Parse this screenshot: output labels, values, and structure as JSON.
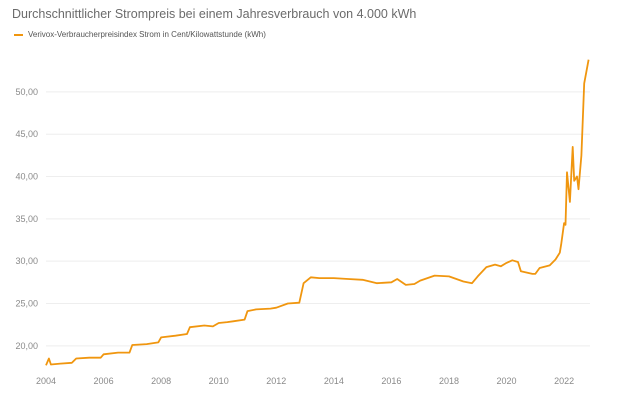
{
  "chart_data": {
    "type": "line",
    "title": "Durchschnittlicher Strompreis bei einem Jahresverbrauch von 4.000 kWh",
    "xlabel": "",
    "ylabel": "",
    "xlim": [
      2004.0,
      2022.9
    ],
    "ylim": [
      17.5,
      54.0
    ],
    "x_ticks": [
      2004,
      2006,
      2008,
      2010,
      2012,
      2014,
      2016,
      2018,
      2020,
      2022
    ],
    "y_ticks": [
      20,
      25,
      30,
      35,
      40,
      45,
      50
    ],
    "y_tick_labels": [
      "20,00",
      "25,00",
      "30,00",
      "35,00",
      "40,00",
      "45,00",
      "50,00"
    ],
    "grid": "horizontal",
    "legend_position": "top-left",
    "series": [
      {
        "name": "Verivox-Verbraucherpreisindex Strom in Cent/Kilowattstunde (kWh)",
        "color": "#f0960f",
        "points": [
          [
            2004.0,
            17.7
          ],
          [
            2004.1,
            18.5
          ],
          [
            2004.17,
            17.8
          ],
          [
            2004.5,
            17.9
          ],
          [
            2004.9,
            18.0
          ],
          [
            2005.05,
            18.5
          ],
          [
            2005.5,
            18.6
          ],
          [
            2005.9,
            18.6
          ],
          [
            2006.0,
            19.0
          ],
          [
            2006.5,
            19.2
          ],
          [
            2006.9,
            19.2
          ],
          [
            2007.0,
            20.1
          ],
          [
            2007.5,
            20.2
          ],
          [
            2007.9,
            20.4
          ],
          [
            2008.0,
            21.0
          ],
          [
            2008.5,
            21.2
          ],
          [
            2008.9,
            21.4
          ],
          [
            2009.0,
            22.2
          ],
          [
            2009.5,
            22.4
          ],
          [
            2009.8,
            22.3
          ],
          [
            2010.0,
            22.7
          ],
          [
            2010.3,
            22.8
          ],
          [
            2010.5,
            22.9
          ],
          [
            2010.9,
            23.1
          ],
          [
            2011.0,
            24.1
          ],
          [
            2011.3,
            24.3
          ],
          [
            2011.8,
            24.4
          ],
          [
            2012.0,
            24.5
          ],
          [
            2012.4,
            25.0
          ],
          [
            2012.8,
            25.1
          ],
          [
            2012.95,
            27.4
          ],
          [
            2013.2,
            28.1
          ],
          [
            2013.5,
            28.0
          ],
          [
            2014.0,
            28.0
          ],
          [
            2014.5,
            27.9
          ],
          [
            2015.0,
            27.8
          ],
          [
            2015.5,
            27.4
          ],
          [
            2016.0,
            27.5
          ],
          [
            2016.2,
            27.9
          ],
          [
            2016.5,
            27.2
          ],
          [
            2016.8,
            27.3
          ],
          [
            2017.0,
            27.7
          ],
          [
            2017.5,
            28.3
          ],
          [
            2018.0,
            28.2
          ],
          [
            2018.5,
            27.6
          ],
          [
            2018.8,
            27.4
          ],
          [
            2019.0,
            28.2
          ],
          [
            2019.3,
            29.3
          ],
          [
            2019.6,
            29.6
          ],
          [
            2019.8,
            29.4
          ],
          [
            2020.0,
            29.8
          ],
          [
            2020.2,
            30.1
          ],
          [
            2020.4,
            29.9
          ],
          [
            2020.5,
            28.8
          ],
          [
            2020.9,
            28.5
          ],
          [
            2021.0,
            28.5
          ],
          [
            2021.15,
            29.2
          ],
          [
            2021.5,
            29.5
          ],
          [
            2021.7,
            30.2
          ],
          [
            2021.85,
            31.0
          ],
          [
            2021.9,
            32.0
          ],
          [
            2022.0,
            34.5
          ],
          [
            2022.05,
            34.3
          ],
          [
            2022.1,
            40.5
          ],
          [
            2022.2,
            37.0
          ],
          [
            2022.3,
            43.5
          ],
          [
            2022.35,
            39.5
          ],
          [
            2022.45,
            40.0
          ],
          [
            2022.5,
            38.5
          ],
          [
            2022.6,
            42.5
          ],
          [
            2022.7,
            51.0
          ],
          [
            2022.85,
            53.8
          ]
        ]
      }
    ]
  }
}
